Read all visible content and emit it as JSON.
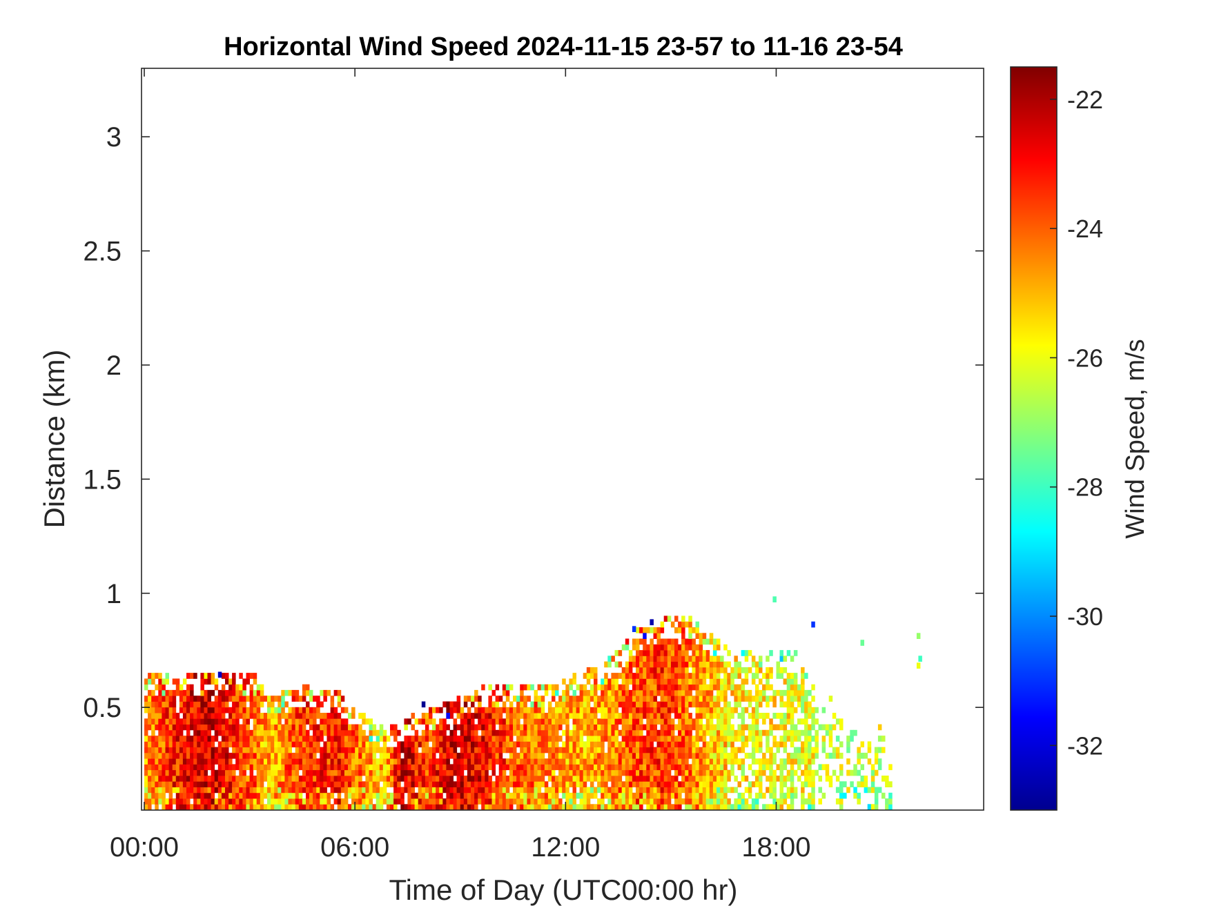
{
  "chart_data": {
    "type": "heatmap",
    "title": "Horizontal Wind Speed 2024-11-15 23-57 to 11-16 23-54",
    "xlabel": "Time of Day (UTC00:00 hr)",
    "ylabel": "Distance (km)",
    "colorbar_label": "Wind Speed, m/s",
    "colormap": "jet",
    "xlim_hours": [
      0,
      24
    ],
    "ylim_km": [
      0.05,
      3.3
    ],
    "clim": [
      -33,
      -21.5
    ],
    "x_ticks": [
      {
        "hour": 0,
        "label": "00:00"
      },
      {
        "hour": 6,
        "label": "06:00"
      },
      {
        "hour": 12,
        "label": "12:00"
      },
      {
        "hour": 18,
        "label": "18:00"
      }
    ],
    "y_ticks": [
      {
        "value": 0.5,
        "label": "0.5"
      },
      {
        "value": 1,
        "label": "1"
      },
      {
        "value": 1.5,
        "label": "1.5"
      },
      {
        "value": 2,
        "label": "2"
      },
      {
        "value": 2.5,
        "label": "2.5"
      },
      {
        "value": 3,
        "label": "3"
      }
    ],
    "colorbar_ticks": [
      {
        "value": -22,
        "label": "-22"
      },
      {
        "value": -24,
        "label": "-24"
      },
      {
        "value": -26,
        "label": "-26"
      },
      {
        "value": -28,
        "label": "-28"
      },
      {
        "value": -30,
        "label": "-30"
      },
      {
        "value": -32,
        "label": "-32"
      }
    ],
    "time_step_hours": 0.1,
    "range_gate_km": 0.025,
    "column_profiles": [
      {
        "hour": 0.0,
        "top_km": 0.6,
        "speed_ms": -24.5
      },
      {
        "hour": 1.0,
        "top_km": 0.62,
        "speed_ms": -23.0
      },
      {
        "hour": 1.8,
        "top_km": 0.6,
        "speed_ms": -22.3
      },
      {
        "hour": 2.5,
        "top_km": 0.62,
        "speed_ms": -23.3
      },
      {
        "hour": 3.1,
        "top_km": 0.6,
        "speed_ms": -24.0
      },
      {
        "hour": 3.5,
        "top_km": 0.5,
        "speed_ms": -25.0
      },
      {
        "hour": 4.5,
        "top_km": 0.55,
        "speed_ms": -23.5
      },
      {
        "hour": 5.5,
        "top_km": 0.52,
        "speed_ms": -23.3
      },
      {
        "hour": 6.2,
        "top_km": 0.42,
        "speed_ms": -24.5
      },
      {
        "hour": 6.8,
        "top_km": 0.36,
        "speed_ms": -25.3
      },
      {
        "hour": 7.3,
        "top_km": 0.4,
        "speed_ms": -22.2
      },
      {
        "hour": 8.0,
        "top_km": 0.45,
        "speed_ms": -23.8
      },
      {
        "hour": 8.7,
        "top_km": 0.48,
        "speed_ms": -22.3
      },
      {
        "hour": 9.5,
        "top_km": 0.55,
        "speed_ms": -22.8
      },
      {
        "hour": 10.5,
        "top_km": 0.55,
        "speed_ms": -24.0
      },
      {
        "hour": 11.5,
        "top_km": 0.55,
        "speed_ms": -24.6
      },
      {
        "hour": 12.5,
        "top_km": 0.62,
        "speed_ms": -24.8
      },
      {
        "hour": 13.3,
        "top_km": 0.68,
        "speed_ms": -24.5
      },
      {
        "hour": 14.0,
        "top_km": 0.8,
        "speed_ms": -23.8
      },
      {
        "hour": 14.8,
        "top_km": 0.85,
        "speed_ms": -23.5
      },
      {
        "hour": 15.5,
        "top_km": 0.85,
        "speed_ms": -24.3
      },
      {
        "hour": 16.3,
        "top_km": 0.75,
        "speed_ms": -25.3
      },
      {
        "hour": 17.0,
        "top_km": 0.72,
        "speed_ms": -25.8
      },
      {
        "hour": 17.8,
        "top_km": 0.72,
        "speed_ms": -25.8
      },
      {
        "hour": 18.5,
        "top_km": 0.7,
        "speed_ms": -26.0
      },
      {
        "hour": 19.3,
        "top_km": 0.55,
        "speed_ms": -26.2
      },
      {
        "hour": 20.1,
        "top_km": 0.45,
        "speed_ms": -26.5
      },
      {
        "hour": 21.0,
        "top_km": 0.42,
        "speed_ms": -26.5
      },
      {
        "hour": 21.3,
        "top_km": 0.1,
        "speed_ms": -26.5
      }
    ],
    "isolated_points": [
      {
        "hour": 19.0,
        "km": 0.85,
        "speed_ms": -31.0
      },
      {
        "hour": 20.4,
        "km": 0.77,
        "speed_ms": -27.5
      },
      {
        "hour": 22.0,
        "km": 0.8,
        "speed_ms": -27.0
      },
      {
        "hour": 22.05,
        "km": 0.7,
        "speed_ms": -28.0
      },
      {
        "hour": 22.0,
        "km": 0.67,
        "speed_ms": -26.0
      },
      {
        "hour": 17.9,
        "km": 0.96,
        "speed_ms": -27.8
      },
      {
        "hour": 14.4,
        "km": 0.86,
        "speed_ms": -32.5
      },
      {
        "hour": 14.2,
        "km": 0.8,
        "speed_ms": -31.5
      },
      {
        "hour": 13.9,
        "km": 0.83,
        "speed_ms": -31.0
      },
      {
        "hour": 7.9,
        "km": 0.5,
        "speed_ms": -32.8
      },
      {
        "hour": 8.6,
        "km": 0.45,
        "speed_ms": -31.5
      },
      {
        "hour": 2.1,
        "km": 0.63,
        "speed_ms": -32.3
      }
    ]
  }
}
